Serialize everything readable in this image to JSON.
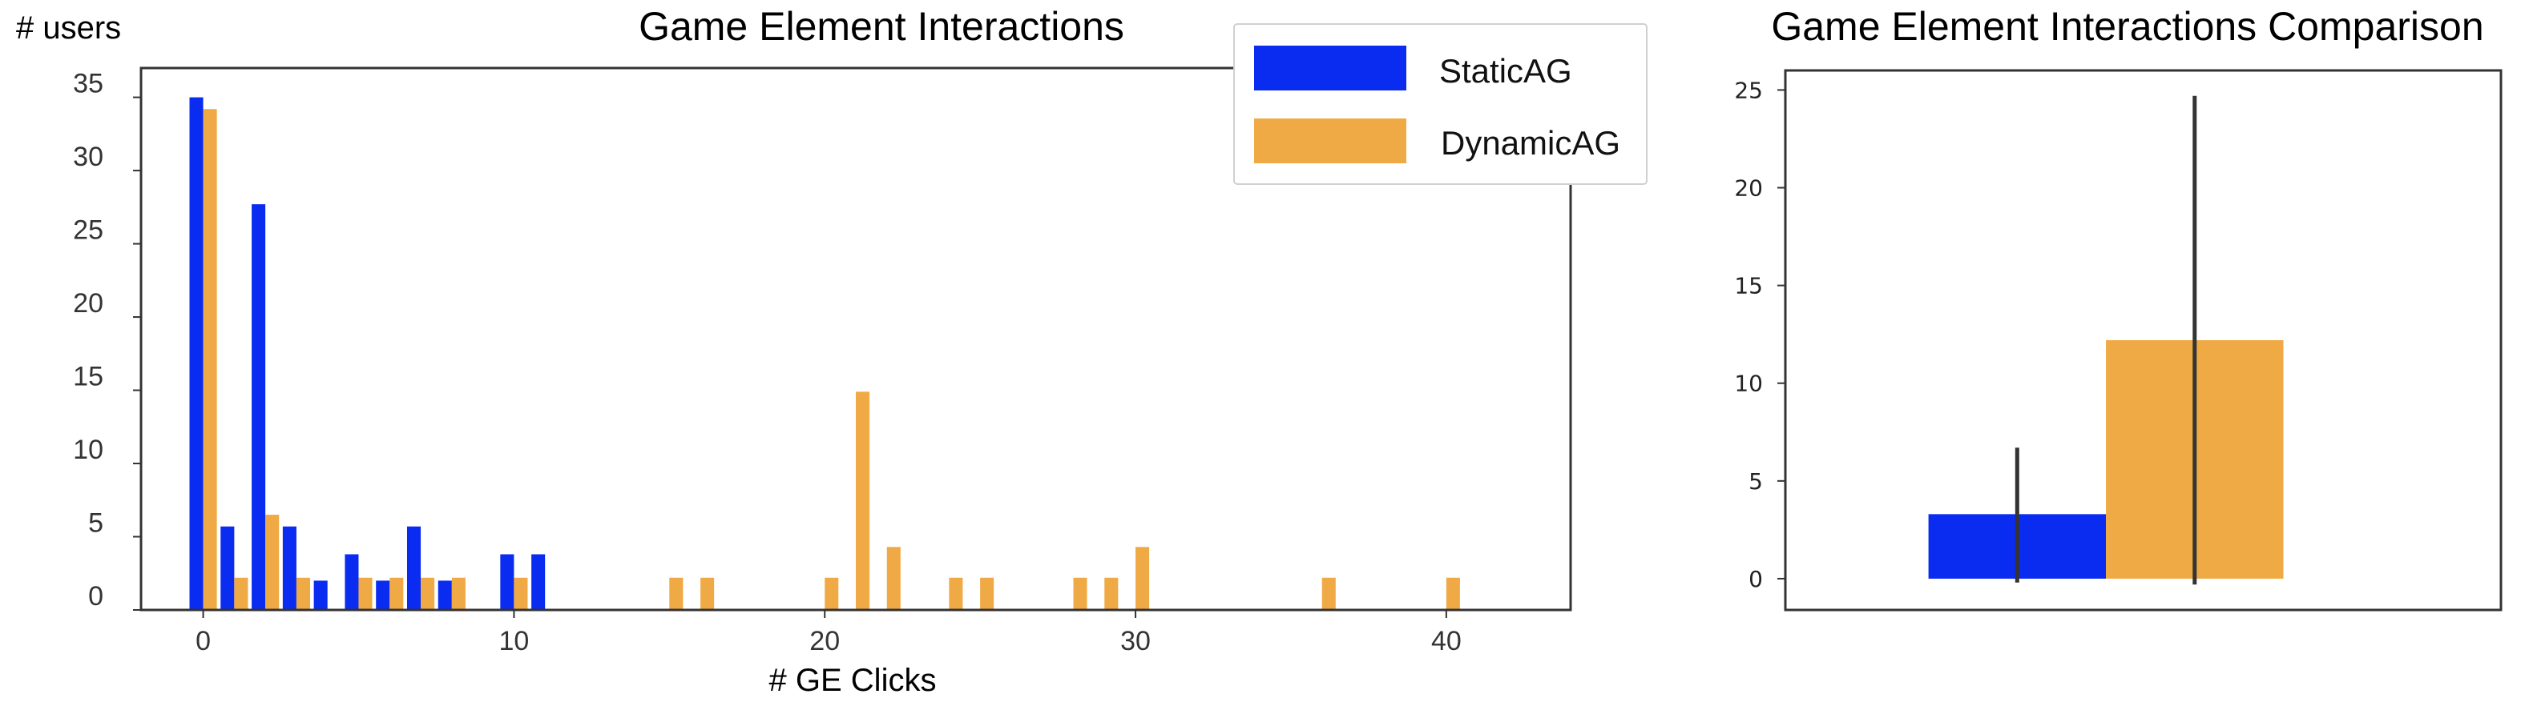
{
  "chart_data": [
    {
      "type": "bar",
      "title": "Game Element Interactions",
      "xlabel": "# GE Clicks",
      "ylabel": "# users",
      "xlim": [
        -2,
        44
      ],
      "ylim": [
        0,
        37
      ],
      "xticks": [
        0,
        10,
        20,
        30,
        40
      ],
      "yticks": [
        0,
        5,
        10,
        15,
        20,
        25,
        30,
        35
      ],
      "grid": false,
      "legend_position": "top-right",
      "series": [
        {
          "name": "StaticAG",
          "color": "#0a2bf0",
          "points": [
            {
              "x": 0,
              "y": 35
            },
            {
              "x": 1,
              "y": 5.7
            },
            {
              "x": 2,
              "y": 27.7
            },
            {
              "x": 3,
              "y": 5.7
            },
            {
              "x": 4,
              "y": 2
            },
            {
              "x": 5,
              "y": 3.8
            },
            {
              "x": 6,
              "y": 2
            },
            {
              "x": 7,
              "y": 5.7
            },
            {
              "x": 8,
              "y": 2
            },
            {
              "x": 10,
              "y": 3.8
            },
            {
              "x": 11,
              "y": 3.8
            }
          ]
        },
        {
          "name": "DynamicAG",
          "color": "#f0aa45",
          "points": [
            {
              "x": 0,
              "y": 34.2
            },
            {
              "x": 1,
              "y": 2.2
            },
            {
              "x": 2,
              "y": 6.5
            },
            {
              "x": 3,
              "y": 2.2
            },
            {
              "x": 5,
              "y": 2.2
            },
            {
              "x": 6,
              "y": 2.2
            },
            {
              "x": 7,
              "y": 2.2
            },
            {
              "x": 8,
              "y": 2.2
            },
            {
              "x": 10,
              "y": 2.2
            },
            {
              "x": 15,
              "y": 2.2
            },
            {
              "x": 16,
              "y": 2.2
            },
            {
              "x": 20,
              "y": 2.2
            },
            {
              "x": 21,
              "y": 14.9
            },
            {
              "x": 22,
              "y": 4.3
            },
            {
              "x": 24,
              "y": 2.2
            },
            {
              "x": 25,
              "y": 2.2
            },
            {
              "x": 28,
              "y": 2.2
            },
            {
              "x": 29,
              "y": 2.2
            },
            {
              "x": 30,
              "y": 4.3
            },
            {
              "x": 36,
              "y": 2.2
            },
            {
              "x": 40,
              "y": 2.2
            }
          ]
        }
      ]
    },
    {
      "type": "bar",
      "title": "Game Element Interactions Comparison",
      "xlabel": "",
      "ylabel": "",
      "ylim": [
        -1.6,
        26
      ],
      "yticks": [
        0,
        5,
        10,
        15,
        20,
        25
      ],
      "grid": false,
      "bars": [
        {
          "name": "StaticAG",
          "mean": 3.3,
          "err_low": -0.2,
          "err_high": 6.7,
          "color": "#0a2bf0"
        },
        {
          "name": "DynamicAG",
          "mean": 12.2,
          "err_low": -0.3,
          "err_high": 24.7,
          "color": "#f0aa45"
        }
      ]
    }
  ]
}
